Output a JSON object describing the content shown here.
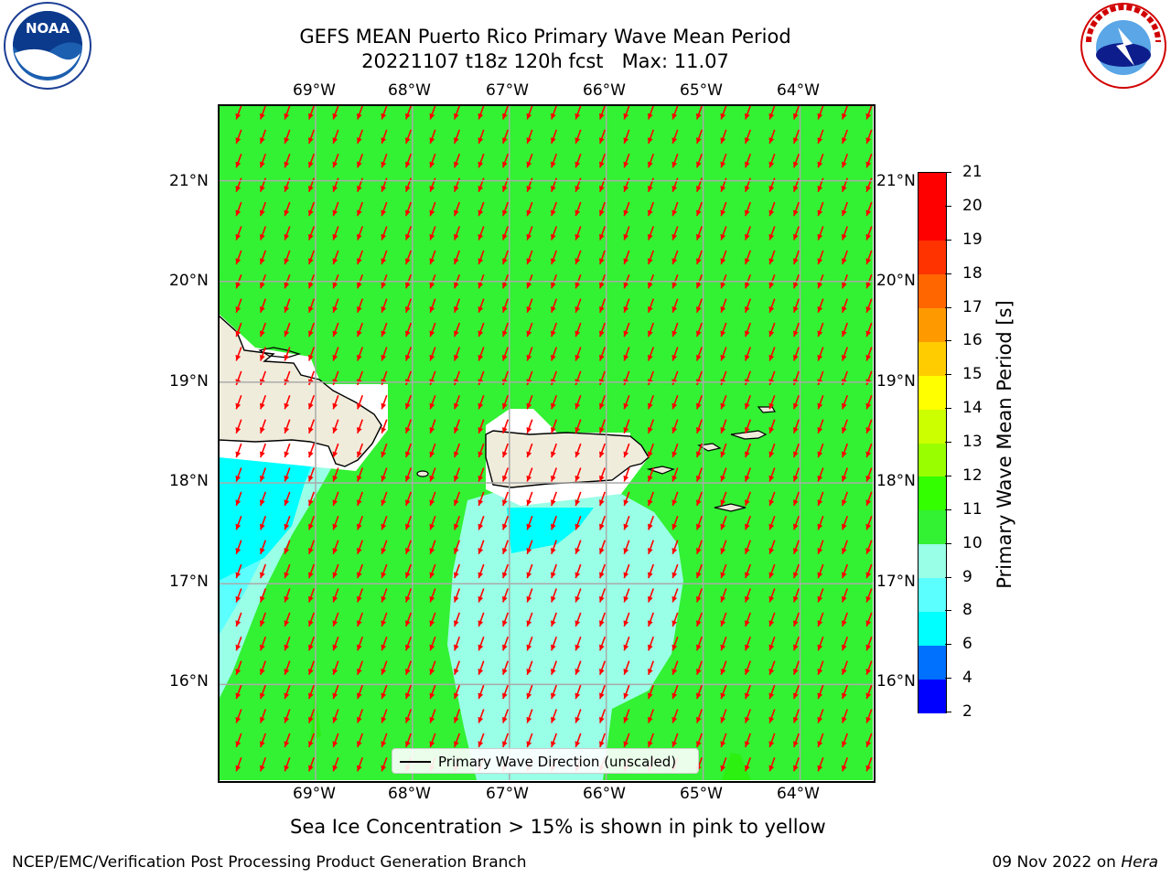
{
  "title": {
    "line1": "GEFS MEAN Puerto Rico Primary Wave Mean Period",
    "line2": "20221107 t18z 120h fcst   Max: 11.07"
  },
  "logos": {
    "left": {
      "icon": "noaa-logo-icon",
      "text": "NOAA"
    },
    "right": {
      "icon": "nws-logo-icon",
      "text": "NATIONAL WEATHER SERVICE"
    }
  },
  "map": {
    "lon_labels": [
      "69°W",
      "68°W",
      "67°W",
      "66°W",
      "65°W",
      "64°W"
    ],
    "lat_labels": [
      "21°N",
      "20°N",
      "19°N",
      "18°N",
      "17°N",
      "16°N"
    ],
    "lon_range": [
      -70.0,
      -63.25
    ],
    "lat_range": [
      15.05,
      21.75
    ],
    "grid": true,
    "land_color": "#efecdc",
    "background_period_color": "#33f133",
    "arrow_color": "#ff0000",
    "wave_direction_deg_from": 20
  },
  "legend": {
    "label": "Primary Wave Direction (unscaled)",
    "placement": "bottom-center"
  },
  "colorbar": {
    "title": "Primary Wave Mean Period [s]",
    "ticks": [
      "2",
      "4",
      "6",
      "8",
      "9",
      "10",
      "11",
      "12",
      "13",
      "14",
      "15",
      "16",
      "17",
      "18",
      "19",
      "20",
      "21"
    ],
    "colors": [
      "#0000ff",
      "#0070ff",
      "#00ffff",
      "#5cffff",
      "#99ffe6",
      "#33f133",
      "#33ff00",
      "#99ff00",
      "#ccff00",
      "#ffff00",
      "#ffcc00",
      "#ff9900",
      "#ff6600",
      "#ff3300",
      "#ff0000",
      "#ff0000"
    ]
  },
  "bottom_text": "Sea Ice Concentration > 15% is shown in pink to yellow",
  "footer": {
    "left": "NCEP/EMC/Verification Post Processing Product Generation Branch",
    "right_prefix": "09 Nov 2022 on ",
    "right_italic": "Hera"
  }
}
